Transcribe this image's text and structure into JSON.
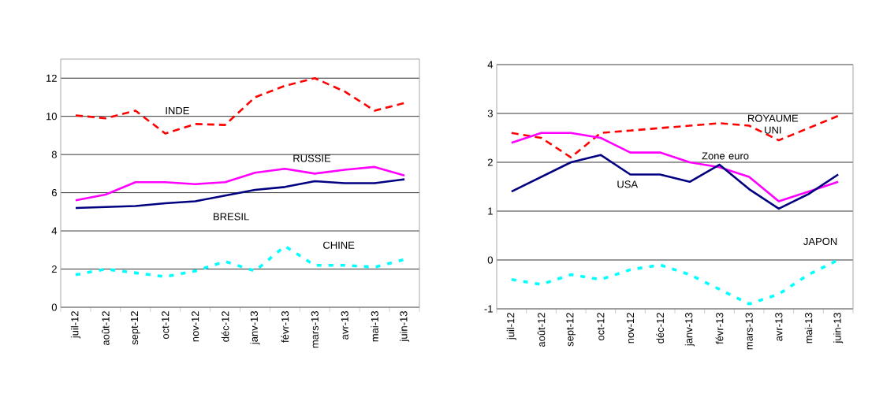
{
  "chart_data": [
    {
      "type": "line",
      "categories": [
        "juil-12",
        "août-12",
        "sept-12",
        "oct-12",
        "nov-12",
        "déc-12",
        "janv-13",
        "févr-13",
        "mars-13",
        "avr-13",
        "mai-13",
        "juin-13"
      ],
      "series": [
        {
          "name": "INDE",
          "color": "#ff0000",
          "line_style": "dashed",
          "values": [
            10.05,
            9.9,
            10.3,
            9.1,
            9.6,
            9.55,
            11.0,
            11.6,
            12.0,
            11.3,
            10.3,
            10.7
          ]
        },
        {
          "name": "RUSSIE",
          "color": "#ff00ff",
          "line_style": "solid",
          "values": [
            5.6,
            5.9,
            6.55,
            6.55,
            6.45,
            6.55,
            7.05,
            7.25,
            7.0,
            7.2,
            7.35,
            6.9
          ]
        },
        {
          "name": "BRESIL",
          "color": "#000080",
          "line_style": "solid",
          "values": [
            5.2,
            5.25,
            5.3,
            5.45,
            5.55,
            5.85,
            6.15,
            6.3,
            6.6,
            6.5,
            6.5,
            6.7
          ]
        },
        {
          "name": "CHINE",
          "color": "#00ffff",
          "line_style": "dotted",
          "values": [
            1.7,
            2.0,
            1.8,
            1.6,
            1.9,
            2.4,
            1.9,
            3.2,
            2.2,
            2.2,
            2.1,
            2.5
          ]
        }
      ],
      "ylim": [
        0,
        13
      ],
      "yticks": [
        0,
        2,
        4,
        6,
        8,
        10,
        12
      ],
      "grid": "y",
      "marker": "none"
    },
    {
      "type": "line",
      "categories": [
        "juil-12",
        "août-12",
        "sept-12",
        "oct-12",
        "nov-12",
        "déc-12",
        "janv-13",
        "févr-13",
        "mars-13",
        "avr-13",
        "mai-13",
        "juin-13"
      ],
      "series": [
        {
          "name": "ROYAUME UNI",
          "color": "#ff0000",
          "line_style": "dashed",
          "values": [
            2.6,
            2.5,
            2.1,
            2.6,
            2.65,
            2.7,
            2.75,
            2.8,
            2.75,
            2.45,
            2.7,
            2.95
          ]
        },
        {
          "name": "Zone euro",
          "color": "#ff00ff",
          "line_style": "solid",
          "values": [
            2.4,
            2.6,
            2.6,
            2.5,
            2.2,
            2.2,
            2.0,
            1.9,
            1.7,
            1.2,
            1.4,
            1.6
          ]
        },
        {
          "name": "USA",
          "color": "#000080",
          "line_style": "solid",
          "values": [
            1.4,
            1.7,
            2.0,
            2.15,
            1.75,
            1.75,
            1.6,
            1.95,
            1.45,
            1.05,
            1.35,
            1.75
          ]
        },
        {
          "name": "JAPON",
          "color": "#00ffff",
          "line_style": "dotted",
          "values": [
            -0.4,
            -0.5,
            -0.3,
            -0.4,
            -0.2,
            -0.1,
            -0.3,
            -0.6,
            -0.9,
            -0.7,
            -0.3,
            0.0
          ]
        }
      ],
      "ylim": [
        -1,
        4
      ],
      "yticks": [
        -1,
        0,
        1,
        2,
        3,
        4
      ],
      "grid": "y",
      "marker": "none"
    }
  ]
}
